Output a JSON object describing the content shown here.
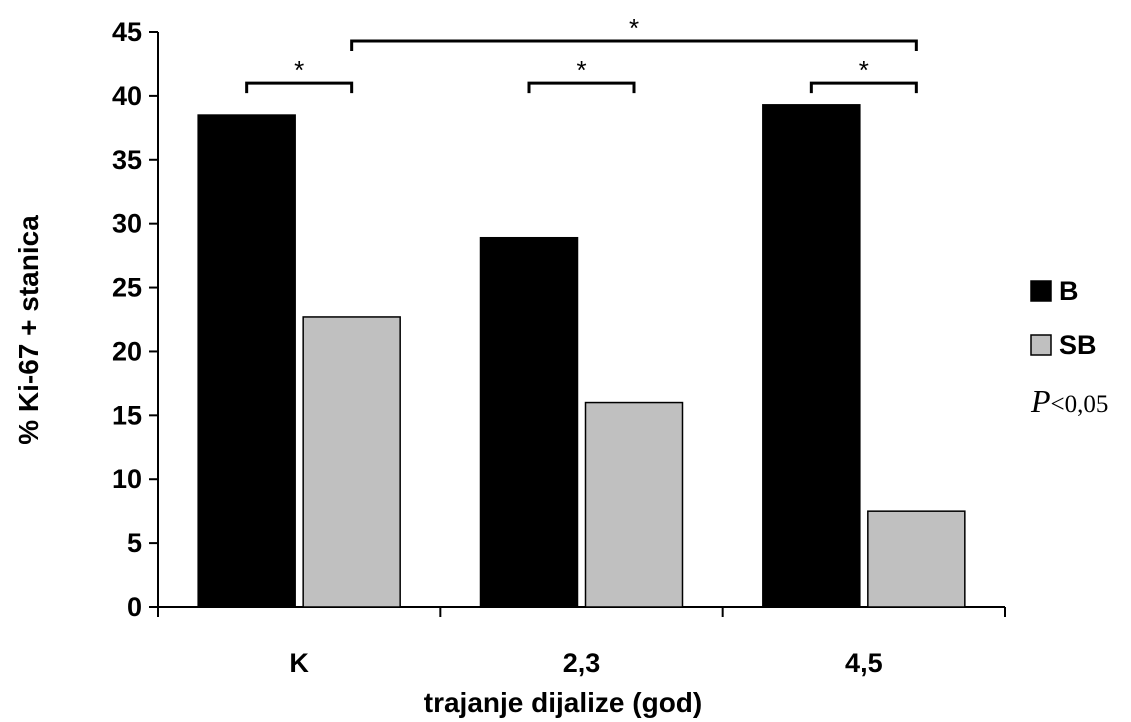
{
  "chart_data": {
    "type": "bar",
    "title": "",
    "xlabel": "trajanje dijalize (god)",
    "ylabel": "% Ki-67 + stanica",
    "categories": [
      "K",
      "2,3",
      "4,5"
    ],
    "ylim": [
      0,
      45
    ],
    "yticks": [
      0,
      5,
      10,
      15,
      20,
      25,
      30,
      35,
      40,
      45
    ],
    "grid": false,
    "legend_position": "right",
    "series": [
      {
        "name": "B",
        "values": [
          38.5,
          28.9,
          39.3
        ],
        "color": "#000000"
      },
      {
        "name": "SB",
        "values": [
          22.7,
          16.0,
          7.5
        ],
        "color": "#c0c0c0"
      }
    ],
    "significance": {
      "symbol": "*",
      "brackets": [
        {
          "from": {
            "category": 0,
            "series": 0
          },
          "to": {
            "category": 0,
            "series": 1
          },
          "level": 41
        },
        {
          "from": {
            "category": 1,
            "series": 0
          },
          "to": {
            "category": 1,
            "series": 1
          },
          "level": 41
        },
        {
          "from": {
            "category": 2,
            "series": 0
          },
          "to": {
            "category": 2,
            "series": 1
          },
          "level": 41
        },
        {
          "from": {
            "category": 0,
            "series": 1
          },
          "to": {
            "category": 2,
            "series": 1
          },
          "level": 44.3
        }
      ]
    },
    "annotation": {
      "p_symbol": "P",
      "p_text": "<0,05"
    }
  }
}
